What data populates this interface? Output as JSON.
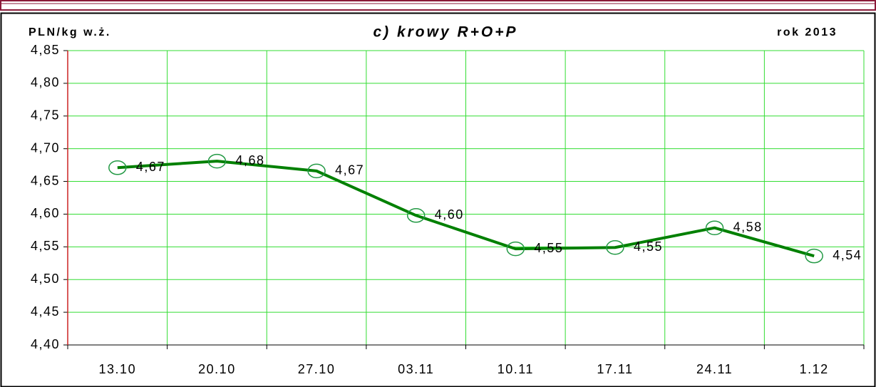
{
  "chart_data": {
    "type": "line",
    "title": "c) krowy R+O+P",
    "y_label": "PLN/kg w.ż.",
    "annotation": "rok 2013",
    "categories": [
      "13.10",
      "20.10",
      "27.10",
      "03.11",
      "10.11",
      "17.11",
      "24.11",
      "1.12"
    ],
    "series": [
      {
        "name": null,
        "color": "#008000",
        "values": [
          4.671,
          4.681,
          4.666,
          4.598,
          4.547,
          4.549,
          4.579,
          4.536
        ],
        "value_labels": [
          "4,67",
          "4,68",
          "4,67",
          "4,60",
          "4,55",
          "4,55",
          "4,58",
          "4,54"
        ]
      }
    ],
    "ylim": [
      4.4,
      4.85
    ],
    "yticks": [
      {
        "value": 4.4,
        "label": "4,40"
      },
      {
        "value": 4.45,
        "label": "4,45"
      },
      {
        "value": 4.5,
        "label": "4,50"
      },
      {
        "value": 4.55,
        "label": "4,55"
      },
      {
        "value": 4.6,
        "label": "4,60"
      },
      {
        "value": 4.65,
        "label": "4,65"
      },
      {
        "value": 4.7,
        "label": "4,70"
      },
      {
        "value": 4.75,
        "label": "4,75"
      },
      {
        "value": 4.8,
        "label": "4,80"
      },
      {
        "value": 4.85,
        "label": "4,85"
      }
    ],
    "grid": true,
    "grid_color": "#33dd33"
  }
}
